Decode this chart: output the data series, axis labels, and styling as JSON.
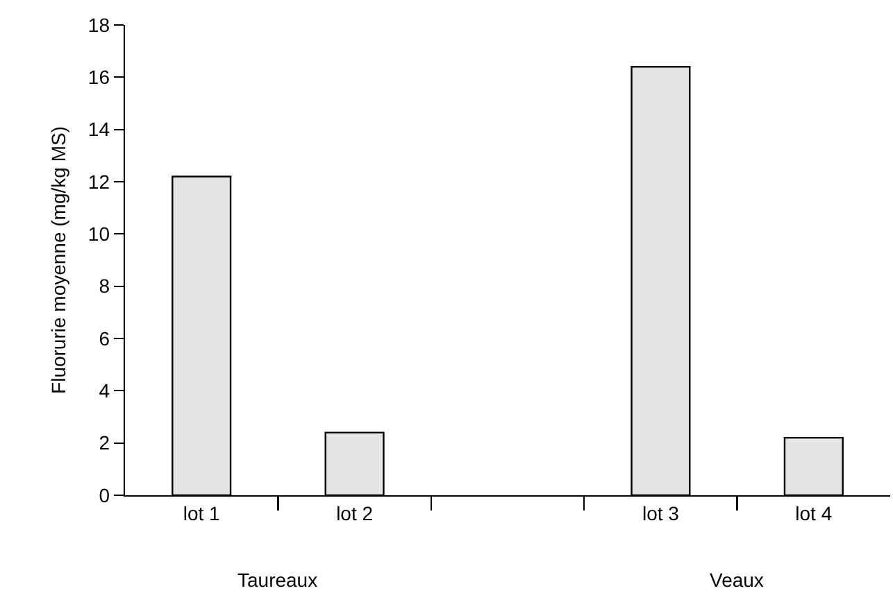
{
  "chart_data": {
    "type": "bar",
    "ylabel": "Fluorurie moyenne (mg/kg MS)",
    "categories": [
      "lot 1",
      "lot 2",
      null,
      "lot 3",
      "lot 4"
    ],
    "values": [
      12.2,
      2.4,
      null,
      16.4,
      2.2
    ],
    "color": "#e5e5e5",
    "ylim": [
      0,
      18
    ],
    "yticks": [
      0,
      2,
      4,
      6,
      8,
      10,
      12,
      14,
      16,
      18
    ],
    "grid": false,
    "annotations": [
      "Taureaux",
      "Veaux"
    ]
  }
}
